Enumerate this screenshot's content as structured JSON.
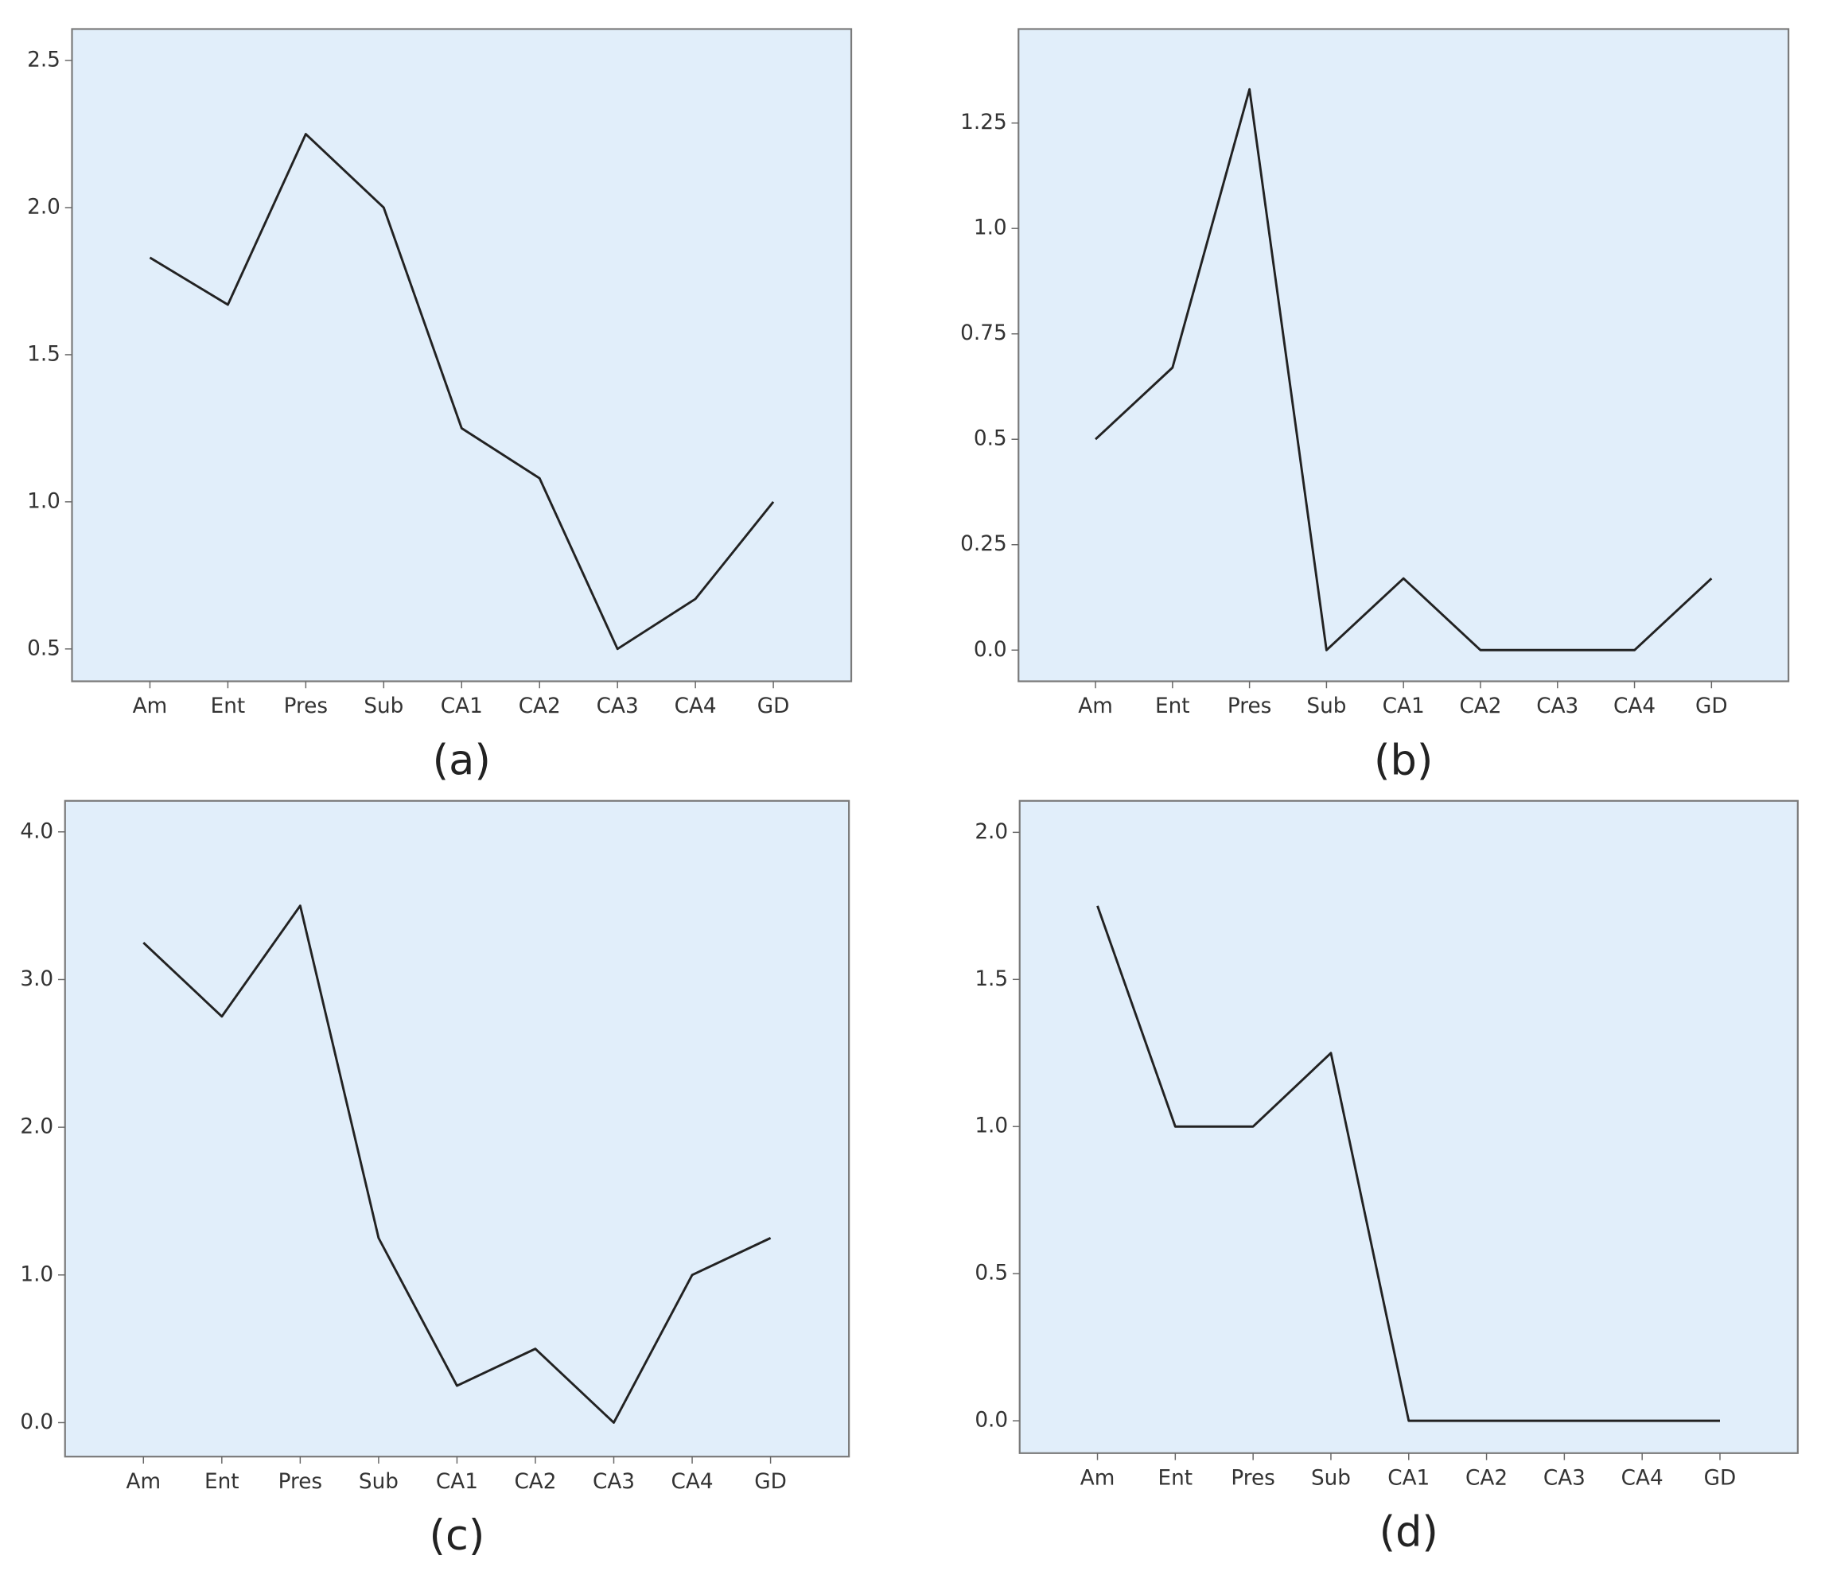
{
  "chart_data": [
    {
      "type": "line",
      "caption": "(a)",
      "categories": [
        "Am",
        "Ent",
        "Pres",
        "Sub",
        "CA1",
        "CA2",
        "CA3",
        "CA4",
        "GD"
      ],
      "series": [
        {
          "color": "#222222",
          "values": [
            1.83,
            1.67,
            2.25,
            2.0,
            1.25,
            1.08,
            0.5,
            0.67,
            1.0
          ]
        }
      ],
      "ylim": [
        0.39,
        2.607
      ],
      "yticks": [
        0.5,
        {
          "value": 1,
          "label": "1.0"
        },
        1.5,
        {
          "value": 2,
          "label": "2.0"
        },
        2.5
      ]
    },
    {
      "type": "line",
      "caption": "(b)",
      "categories": [
        "Am",
        "Ent",
        "Pres",
        "Sub",
        "CA1",
        "CA2",
        "CA3",
        "CA4",
        "GD"
      ],
      "series": [
        {
          "color": "#222222",
          "values": [
            0.5,
            0.67,
            1.33,
            0,
            0.17,
            0,
            0,
            0,
            0.17
          ]
        }
      ],
      "ylim": [
        -0.074,
        1.473
      ],
      "yticks": [
        {
          "value": 0,
          "label": "0.0"
        },
        0.25,
        0.5,
        0.75,
        {
          "value": 1,
          "label": "1.0"
        },
        1.25
      ]
    },
    {
      "type": "line",
      "caption": "(c)",
      "categories": [
        "Am",
        "Ent",
        "Pres",
        "Sub",
        "CA1",
        "CA2",
        "CA3",
        "CA4",
        "GD"
      ],
      "series": [
        {
          "color": "#222222",
          "values": [
            3.25,
            2.75,
            3.5,
            1.25,
            0.25,
            0.5,
            0,
            1.0,
            1.25
          ]
        }
      ],
      "ylim": [
        -0.23,
        4.21
      ],
      "yticks": [
        {
          "value": 0,
          "label": "0.0"
        },
        {
          "value": 1,
          "label": "1.0"
        },
        {
          "value": 2,
          "label": "2.0"
        },
        {
          "value": 3,
          "label": "3.0"
        },
        {
          "value": 4,
          "label": "4.0"
        }
      ]
    },
    {
      "type": "line",
      "caption": "(d)",
      "categories": [
        "Am",
        "Ent",
        "Pres",
        "Sub",
        "CA1",
        "CA2",
        "CA3",
        "CA4",
        "GD"
      ],
      "series": [
        {
          "color": "#222222",
          "values": [
            1.75,
            1.0,
            1.0,
            1.25,
            0,
            0,
            0,
            0,
            0
          ]
        }
      ],
      "ylim": [
        -0.11,
        2.107
      ],
      "yticks": [
        {
          "value": 0,
          "label": "0.0"
        },
        0.5,
        {
          "value": 1,
          "label": "1.0"
        },
        1.5,
        {
          "value": 2,
          "label": "2.0"
        }
      ]
    }
  ]
}
